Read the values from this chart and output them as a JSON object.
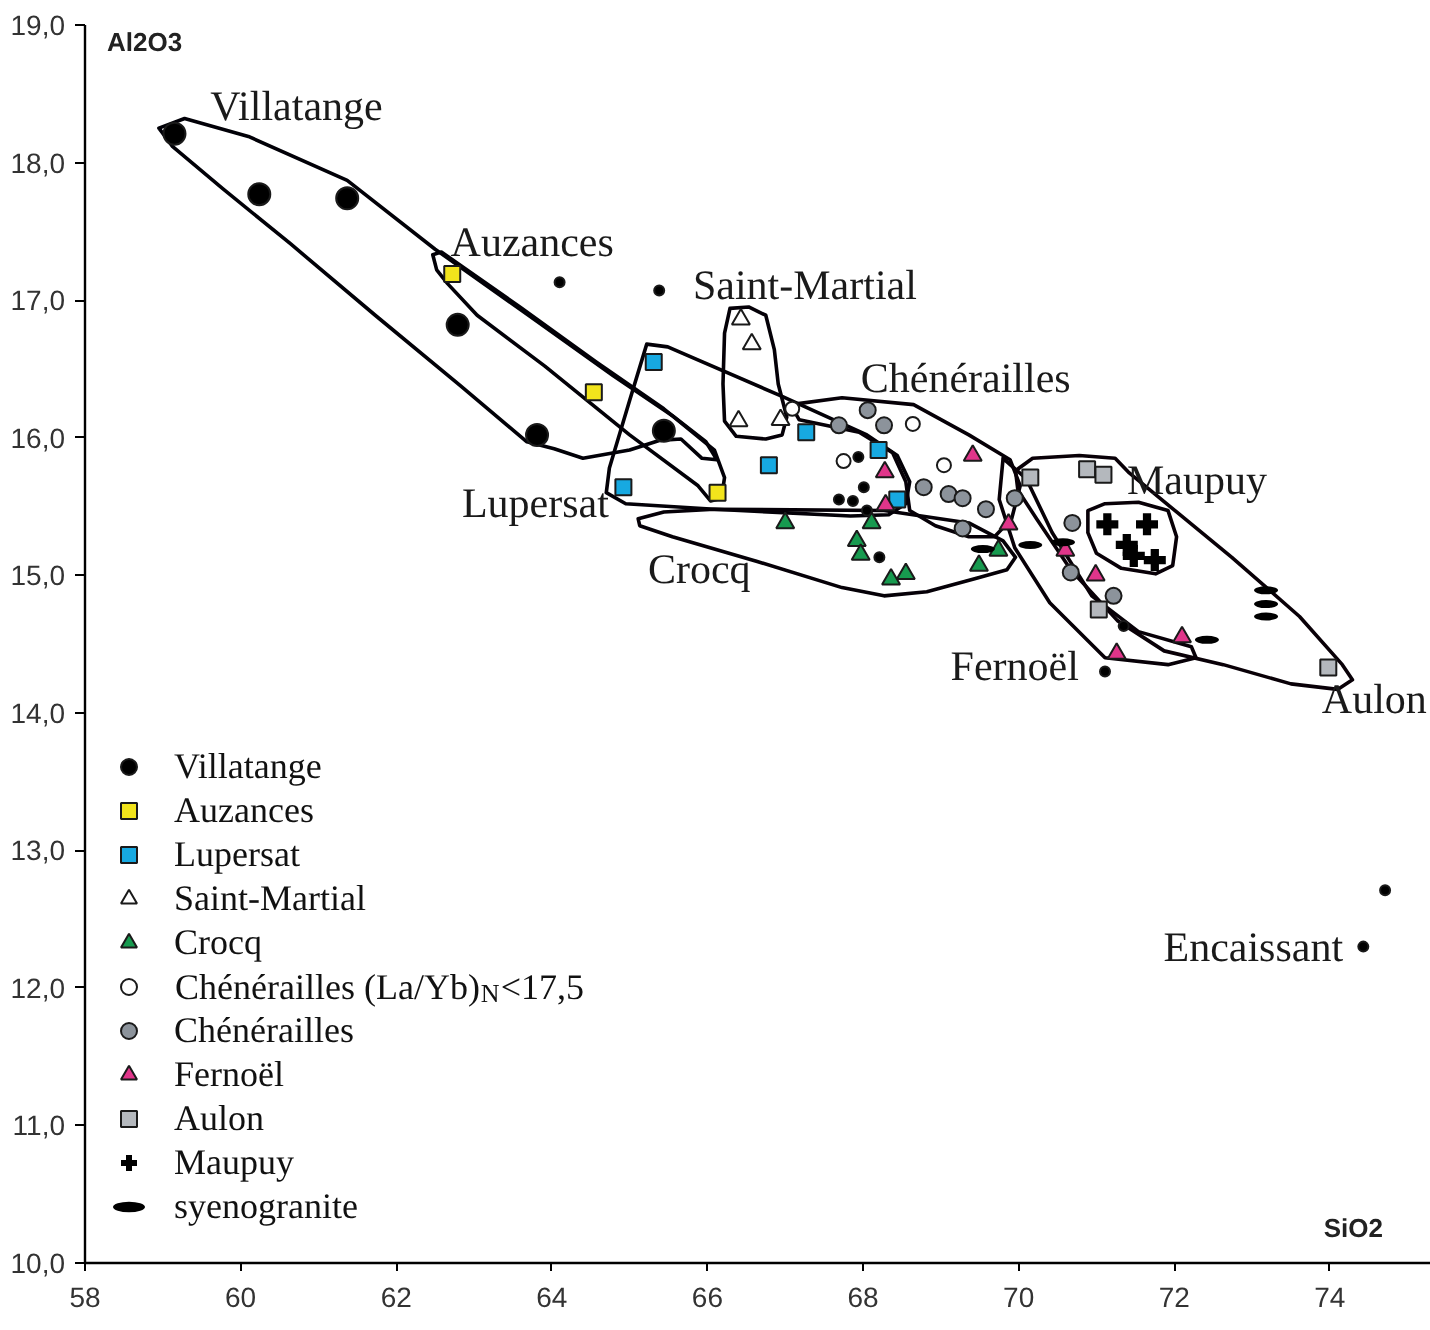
{
  "chart_data": {
    "type": "scatter",
    "xlabel": "SiO2",
    "ylabel": "Al2O3",
    "xlim": [
      58,
      75.3
    ],
    "ylim": [
      10,
      19
    ],
    "xticks": [
      58,
      60,
      62,
      64,
      66,
      68,
      70,
      72,
      74
    ],
    "yticks": [
      {
        "value": 10,
        "label": "10,0"
      },
      {
        "value": 11,
        "label": "11,0"
      },
      {
        "value": 12,
        "label": "12,0"
      },
      {
        "value": 13,
        "label": "13,0"
      },
      {
        "value": 14,
        "label": "14,0"
      },
      {
        "value": 15,
        "label": "15,0"
      },
      {
        "value": 16,
        "label": "16,0"
      },
      {
        "value": 17,
        "label": "17,0"
      },
      {
        "value": 18,
        "label": "18,0"
      },
      {
        "value": 19,
        "label": "19,0"
      }
    ],
    "legend": "bottom left",
    "annotations": [
      {
        "text": "Villatange",
        "x": 59.15,
        "y": 18.21
      },
      {
        "text": "Auzances",
        "x": 62.72,
        "y": 17.19
      },
      {
        "text": "Saint-Martial",
        "x": 66.43,
        "y": 16.86
      },
      {
        "text": "Chénérailles",
        "x": 68.06,
        "y": 16.2
      },
      {
        "text": "Lupersat",
        "x": 64.92,
        "y": 15.64
      },
      {
        "text": "Crocq",
        "x": 67.0,
        "y": 15.38
      },
      {
        "text": "Fernoël",
        "x": 71.26,
        "y": 14.43
      },
      {
        "text": "Maupuy",
        "x": 71.65,
        "y": 15.37
      },
      {
        "text": "Aulon",
        "x": 73.98,
        "y": 14.33
      },
      {
        "text": "Encaissant",
        "x": 74.43,
        "y": 12.3
      }
    ],
    "series": [
      {
        "name": "Villatange",
        "marker": "circle",
        "color": "#000000",
        "x": [
          59.15,
          60.24,
          61.37,
          62.79,
          63.81,
          65.44
        ],
        "values": [
          18.21,
          17.77,
          17.74,
          16.82,
          16.02,
          16.05
        ]
      },
      {
        "name": "Auzances",
        "marker": "square",
        "color": "#f2e41c",
        "x": [
          62.72,
          64.54,
          66.13
        ],
        "values": [
          17.19,
          16.33,
          15.6
        ]
      },
      {
        "name": "Lupersat",
        "marker": "square",
        "color": "#17a9e1",
        "x": [
          65.31,
          64.92,
          67.27,
          66.79,
          68.2,
          68.44
        ],
        "values": [
          16.55,
          15.64,
          16.04,
          15.8,
          15.91,
          15.55
        ]
      },
      {
        "name": "Saint-Martial",
        "marker": "triangle",
        "color": "#ffffff",
        "x": [
          66.43,
          66.57,
          66.4,
          66.94
        ],
        "values": [
          16.86,
          16.68,
          16.12,
          16.13
        ]
      },
      {
        "name": "Crocq",
        "marker": "triangle",
        "color": "#179a4f",
        "x": [
          67.0,
          67.92,
          67.97,
          68.11,
          68.36,
          68.55,
          69.74,
          69.49
        ],
        "values": [
          15.38,
          15.25,
          15.15,
          15.38,
          14.97,
          15.01,
          15.18,
          15.07
        ]
      },
      {
        "name": "Chénérailles (La/Yb)$_{N}$<17,5",
        "marker": "circle",
        "color": "#ffffff",
        "x": [
          67.09,
          68.64,
          67.75,
          69.04
        ],
        "values": [
          16.21,
          16.1,
          15.83,
          15.8
        ]
      },
      {
        "name": "Chénérailles",
        "marker": "circle",
        "color": "#8c939b",
        "x": [
          67.69,
          68.06,
          68.27,
          68.78,
          69.1,
          69.28,
          69.58,
          69.28,
          69.95,
          70.69,
          70.67,
          71.22
        ],
        "values": [
          16.09,
          16.2,
          16.09,
          15.64,
          15.59,
          15.56,
          15.48,
          15.34,
          15.56,
          15.38,
          15.02,
          14.85
        ]
      },
      {
        "name": "Fernoël",
        "marker": "triangle",
        "color": "#e0358a",
        "x": [
          68.28,
          68.29,
          69.41,
          69.87,
          70.6,
          70.99,
          71.26,
          72.1
        ],
        "values": [
          15.75,
          15.51,
          15.87,
          15.37,
          15.18,
          15.0,
          14.43,
          14.55
        ]
      },
      {
        "name": "Aulon",
        "marker": "square",
        "color": "#b4b8bd",
        "x": [
          70.15,
          70.88,
          71.09,
          71.03,
          73.98
        ],
        "values": [
          15.71,
          15.77,
          15.73,
          14.75,
          14.33
        ]
      },
      {
        "name": "Maupuy",
        "marker": "cross",
        "color": "#000000",
        "x": [
          71.14,
          71.65,
          71.39,
          71.75,
          71.48
        ],
        "values": [
          15.37,
          15.37,
          15.22,
          15.11,
          15.14
        ]
      },
      {
        "name": "syenogranite",
        "color": "#000000",
        "x": [
          69.54,
          70.15,
          70.57,
          72.42,
          73.18,
          73.18,
          73.18
        ],
        "values": [
          15.19,
          15.22,
          15.24,
          14.53,
          14.89,
          14.79,
          14.7
        ]
      },
      {
        "marker": "circle",
        "color": "#000000",
        "x": [
          64.1,
          65.38,
          67.94,
          67.69,
          67.87,
          68.01,
          68.05,
          68.21,
          71.35,
          71.11,
          74.43,
          74.71
        ],
        "values": [
          17.13,
          17.07,
          15.86,
          15.55,
          15.54,
          15.64,
          15.47,
          15.13,
          14.63,
          14.3,
          12.3,
          12.71
        ]
      }
    ]
  }
}
